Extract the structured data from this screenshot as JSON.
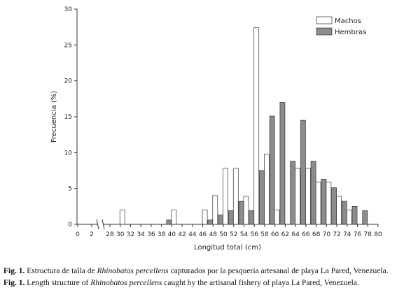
{
  "chart_data": {
    "type": "bar",
    "x_label": "Longitud total (cm)",
    "y_label": "Frecuencia (%)",
    "categories": [
      "0",
      "2",
      "28",
      "30",
      "32",
      "34",
      "36",
      "38",
      "40",
      "42",
      "44",
      "46",
      "48",
      "50",
      "52",
      "54",
      "56",
      "58",
      "60",
      "62",
      "64",
      "66",
      "68",
      "70",
      "72",
      "74",
      "76",
      "78",
      "80"
    ],
    "series": [
      {
        "name": "Machos",
        "color": "#ffffff",
        "values": [
          0,
          0,
          0,
          2,
          0,
          0,
          0,
          0,
          2,
          0,
          0,
          2,
          4,
          7.8,
          7.8,
          3.9,
          27.4,
          9.8,
          2,
          0,
          7.8,
          7.8,
          5.9,
          5.9,
          3.9,
          2,
          0,
          0,
          0
        ]
      },
      {
        "name": "Hembras",
        "color": "#8c8c8c",
        "values": [
          0,
          0,
          0,
          0,
          0,
          0,
          0,
          0,
          0.6,
          0,
          0,
          0,
          0.6,
          1.3,
          1.9,
          3.2,
          1.9,
          7.5,
          15.1,
          17,
          8.8,
          14.5,
          8.8,
          6.3,
          5.1,
          3.2,
          2.5,
          1.9,
          0
        ]
      }
    ],
    "ylim": [
      0,
      30
    ],
    "yticks": [
      0,
      5,
      10,
      15,
      20,
      25,
      30
    ],
    "grid": false,
    "legend": "top-right"
  },
  "caption": [
    {
      "label": "Fig. 1.",
      "before": " Estructura de talla de ",
      "italic": "Rhinobatos percellens",
      "after": " capturados por la pesquería artesanal de playa La Pared, Venezuela."
    },
    {
      "label": "Fig. 1.",
      "before": " Length structure of ",
      "italic": "Rhinobatos percellens",
      "after": " caught by the artisanal fishery of playa La Pared, Venezuela."
    }
  ]
}
